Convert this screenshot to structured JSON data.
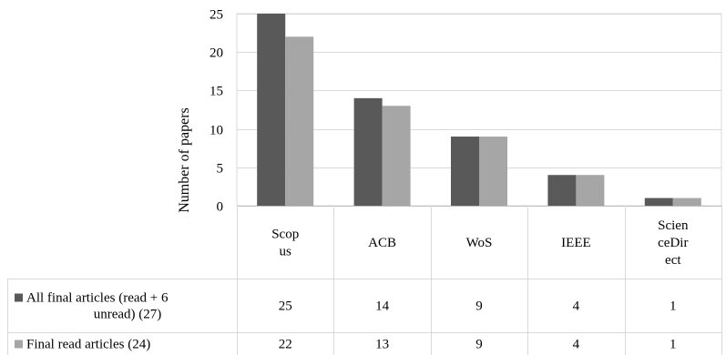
{
  "chart_data": {
    "type": "bar",
    "ylabel": "Number of papers",
    "xlabel": "",
    "ylim": [
      0,
      25
    ],
    "yticks": [
      0,
      5,
      10,
      15,
      20,
      25
    ],
    "grid": true,
    "categories": [
      [
        "Scop",
        "us"
      ],
      [
        "ACB"
      ],
      [
        "WoS"
      ],
      [
        "IEEE"
      ],
      [
        "Scien",
        "ceDir",
        "ect"
      ]
    ],
    "series": [
      {
        "name": [
          "All final articles (read + 6",
          "unread) (27)"
        ],
        "color": "#595959",
        "values": [
          25,
          14,
          9,
          4,
          1
        ]
      },
      {
        "name": [
          "Final read articles (24)"
        ],
        "color": "#a6a6a6",
        "values": [
          22,
          13,
          9,
          4,
          1
        ]
      }
    ],
    "data_table": true,
    "legend": "data-table-row-headers"
  }
}
